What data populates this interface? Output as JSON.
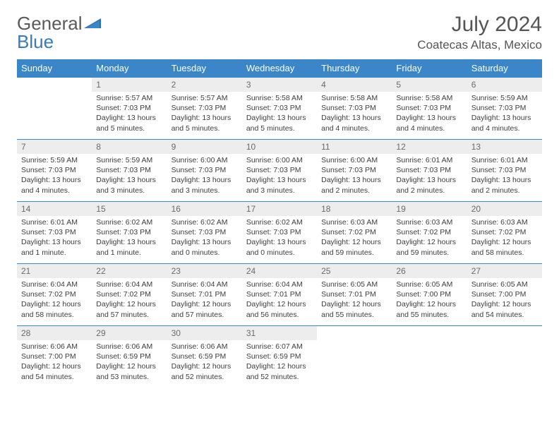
{
  "logo": {
    "part1": "General",
    "part2": "Blue"
  },
  "title": {
    "month": "July 2024",
    "location": "Coatecas Altas, Mexico"
  },
  "colors": {
    "header_bg": "#3a86c8",
    "header_text": "#ffffff",
    "daynum_bg": "#ededed",
    "daynum_text": "#6a6a6a",
    "body_text": "#3d3d3d",
    "row_border": "#3a86c8",
    "logo_gray": "#5a5a5a",
    "logo_blue": "#3a7ab8"
  },
  "fonts": {
    "title_size": 30,
    "location_size": 17,
    "th_size": 13,
    "daynum_size": 12,
    "cell_size": 10.5
  },
  "days_of_week": [
    "Sunday",
    "Monday",
    "Tuesday",
    "Wednesday",
    "Thursday",
    "Friday",
    "Saturday"
  ],
  "weeks": [
    [
      {
        "n": "",
        "lines": []
      },
      {
        "n": "1",
        "lines": [
          "Sunrise: 5:57 AM",
          "Sunset: 7:03 PM",
          "Daylight: 13 hours and 5 minutes."
        ]
      },
      {
        "n": "2",
        "lines": [
          "Sunrise: 5:57 AM",
          "Sunset: 7:03 PM",
          "Daylight: 13 hours and 5 minutes."
        ]
      },
      {
        "n": "3",
        "lines": [
          "Sunrise: 5:58 AM",
          "Sunset: 7:03 PM",
          "Daylight: 13 hours and 5 minutes."
        ]
      },
      {
        "n": "4",
        "lines": [
          "Sunrise: 5:58 AM",
          "Sunset: 7:03 PM",
          "Daylight: 13 hours and 4 minutes."
        ]
      },
      {
        "n": "5",
        "lines": [
          "Sunrise: 5:58 AM",
          "Sunset: 7:03 PM",
          "Daylight: 13 hours and 4 minutes."
        ]
      },
      {
        "n": "6",
        "lines": [
          "Sunrise: 5:59 AM",
          "Sunset: 7:03 PM",
          "Daylight: 13 hours and 4 minutes."
        ]
      }
    ],
    [
      {
        "n": "7",
        "lines": [
          "Sunrise: 5:59 AM",
          "Sunset: 7:03 PM",
          "Daylight: 13 hours and 4 minutes."
        ]
      },
      {
        "n": "8",
        "lines": [
          "Sunrise: 5:59 AM",
          "Sunset: 7:03 PM",
          "Daylight: 13 hours and 3 minutes."
        ]
      },
      {
        "n": "9",
        "lines": [
          "Sunrise: 6:00 AM",
          "Sunset: 7:03 PM",
          "Daylight: 13 hours and 3 minutes."
        ]
      },
      {
        "n": "10",
        "lines": [
          "Sunrise: 6:00 AM",
          "Sunset: 7:03 PM",
          "Daylight: 13 hours and 3 minutes."
        ]
      },
      {
        "n": "11",
        "lines": [
          "Sunrise: 6:00 AM",
          "Sunset: 7:03 PM",
          "Daylight: 13 hours and 2 minutes."
        ]
      },
      {
        "n": "12",
        "lines": [
          "Sunrise: 6:01 AM",
          "Sunset: 7:03 PM",
          "Daylight: 13 hours and 2 minutes."
        ]
      },
      {
        "n": "13",
        "lines": [
          "Sunrise: 6:01 AM",
          "Sunset: 7:03 PM",
          "Daylight: 13 hours and 2 minutes."
        ]
      }
    ],
    [
      {
        "n": "14",
        "lines": [
          "Sunrise: 6:01 AM",
          "Sunset: 7:03 PM",
          "Daylight: 13 hours and 1 minute."
        ]
      },
      {
        "n": "15",
        "lines": [
          "Sunrise: 6:02 AM",
          "Sunset: 7:03 PM",
          "Daylight: 13 hours and 1 minute."
        ]
      },
      {
        "n": "16",
        "lines": [
          "Sunrise: 6:02 AM",
          "Sunset: 7:03 PM",
          "Daylight: 13 hours and 0 minutes."
        ]
      },
      {
        "n": "17",
        "lines": [
          "Sunrise: 6:02 AM",
          "Sunset: 7:03 PM",
          "Daylight: 13 hours and 0 minutes."
        ]
      },
      {
        "n": "18",
        "lines": [
          "Sunrise: 6:03 AM",
          "Sunset: 7:02 PM",
          "Daylight: 12 hours and 59 minutes."
        ]
      },
      {
        "n": "19",
        "lines": [
          "Sunrise: 6:03 AM",
          "Sunset: 7:02 PM",
          "Daylight: 12 hours and 59 minutes."
        ]
      },
      {
        "n": "20",
        "lines": [
          "Sunrise: 6:03 AM",
          "Sunset: 7:02 PM",
          "Daylight: 12 hours and 58 minutes."
        ]
      }
    ],
    [
      {
        "n": "21",
        "lines": [
          "Sunrise: 6:04 AM",
          "Sunset: 7:02 PM",
          "Daylight: 12 hours and 58 minutes."
        ]
      },
      {
        "n": "22",
        "lines": [
          "Sunrise: 6:04 AM",
          "Sunset: 7:02 PM",
          "Daylight: 12 hours and 57 minutes."
        ]
      },
      {
        "n": "23",
        "lines": [
          "Sunrise: 6:04 AM",
          "Sunset: 7:01 PM",
          "Daylight: 12 hours and 57 minutes."
        ]
      },
      {
        "n": "24",
        "lines": [
          "Sunrise: 6:04 AM",
          "Sunset: 7:01 PM",
          "Daylight: 12 hours and 56 minutes."
        ]
      },
      {
        "n": "25",
        "lines": [
          "Sunrise: 6:05 AM",
          "Sunset: 7:01 PM",
          "Daylight: 12 hours and 55 minutes."
        ]
      },
      {
        "n": "26",
        "lines": [
          "Sunrise: 6:05 AM",
          "Sunset: 7:00 PM",
          "Daylight: 12 hours and 55 minutes."
        ]
      },
      {
        "n": "27",
        "lines": [
          "Sunrise: 6:05 AM",
          "Sunset: 7:00 PM",
          "Daylight: 12 hours and 54 minutes."
        ]
      }
    ],
    [
      {
        "n": "28",
        "lines": [
          "Sunrise: 6:06 AM",
          "Sunset: 7:00 PM",
          "Daylight: 12 hours and 54 minutes."
        ]
      },
      {
        "n": "29",
        "lines": [
          "Sunrise: 6:06 AM",
          "Sunset: 6:59 PM",
          "Daylight: 12 hours and 53 minutes."
        ]
      },
      {
        "n": "30",
        "lines": [
          "Sunrise: 6:06 AM",
          "Sunset: 6:59 PM",
          "Daylight: 12 hours and 52 minutes."
        ]
      },
      {
        "n": "31",
        "lines": [
          "Sunrise: 6:07 AM",
          "Sunset: 6:59 PM",
          "Daylight: 12 hours and 52 minutes."
        ]
      },
      {
        "n": "",
        "lines": []
      },
      {
        "n": "",
        "lines": []
      },
      {
        "n": "",
        "lines": []
      }
    ]
  ]
}
